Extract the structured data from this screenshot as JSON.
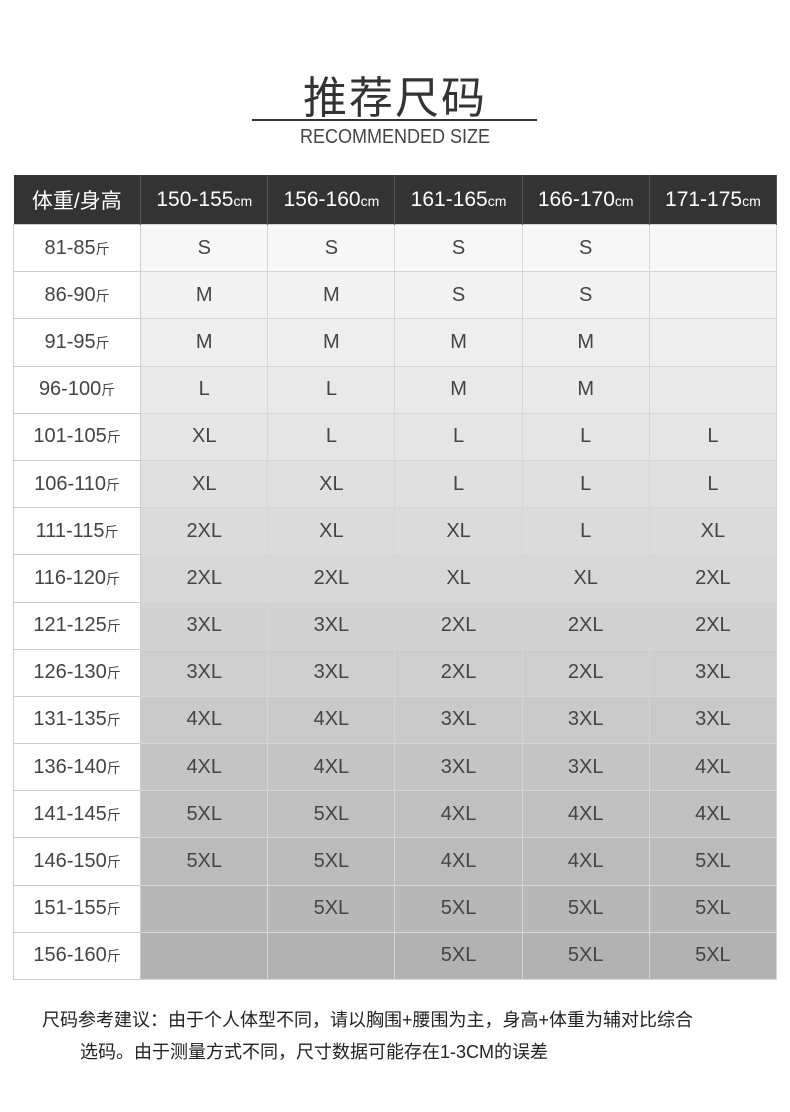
{
  "title": "推荐尺码",
  "subtitle": "RECOMMENDED SIZE",
  "table": {
    "corner": "体重/身高",
    "height_unit": "cm",
    "weight_unit": "斤",
    "columns": [
      "150-155",
      "156-160",
      "161-165",
      "166-170",
      "171-175"
    ],
    "rows": [
      {
        "weight": "81-85",
        "sizes": [
          "S",
          "S",
          "S",
          "S",
          ""
        ]
      },
      {
        "weight": "86-90",
        "sizes": [
          "M",
          "M",
          "S",
          "S",
          ""
        ]
      },
      {
        "weight": "91-95",
        "sizes": [
          "M",
          "M",
          "M",
          "M",
          ""
        ]
      },
      {
        "weight": "96-100",
        "sizes": [
          "L",
          "L",
          "M",
          "M",
          ""
        ]
      },
      {
        "weight": "101-105",
        "sizes": [
          "XL",
          "L",
          "L",
          "L",
          "L"
        ]
      },
      {
        "weight": "106-110",
        "sizes": [
          "XL",
          "XL",
          "L",
          "L",
          "L"
        ]
      },
      {
        "weight": "111-115",
        "sizes": [
          "2XL",
          "XL",
          "XL",
          "L",
          "XL"
        ]
      },
      {
        "weight": "116-120",
        "sizes": [
          "2XL",
          "2XL",
          "XL",
          "XL",
          "2XL"
        ]
      },
      {
        "weight": "121-125",
        "sizes": [
          "3XL",
          "3XL",
          "2XL",
          "2XL",
          "2XL"
        ]
      },
      {
        "weight": "126-130",
        "sizes": [
          "3XL",
          "3XL",
          "2XL",
          "2XL",
          "3XL"
        ]
      },
      {
        "weight": "131-135",
        "sizes": [
          "4XL",
          "4XL",
          "3XL",
          "3XL",
          "3XL"
        ]
      },
      {
        "weight": "136-140",
        "sizes": [
          "4XL",
          "4XL",
          "3XL",
          "3XL",
          "4XL"
        ]
      },
      {
        "weight": "141-145",
        "sizes": [
          "5XL",
          "5XL",
          "4XL",
          "4XL",
          "4XL"
        ]
      },
      {
        "weight": "146-150",
        "sizes": [
          "5XL",
          "5XL",
          "4XL",
          "4XL",
          "5XL"
        ]
      },
      {
        "weight": "151-155",
        "sizes": [
          "",
          "5XL",
          "5XL",
          "5XL",
          "5XL"
        ]
      },
      {
        "weight": "156-160",
        "sizes": [
          "",
          "",
          "5XL",
          "5XL",
          "5XL"
        ]
      }
    ]
  },
  "note": {
    "line1": "尺码参考建议：由于个人体型不同，请以胸围+腰围为主，身高+体重为辅对比综合",
    "line2": "选码。由于测量方式不同，尺寸数据可能存在1-3CM的误差"
  },
  "colors": {
    "header_bg": "#333333",
    "cell_top": "#f7f7f7",
    "cell_bottom": "#b2b2b2"
  }
}
